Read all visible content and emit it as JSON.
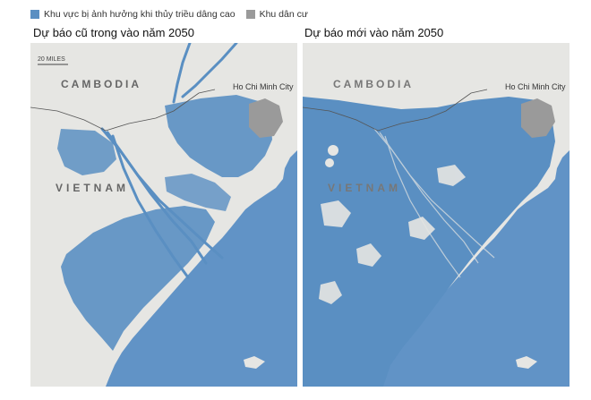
{
  "legend": {
    "items": [
      {
        "label": "Khu vực bị ảnh hưởng khi thủy triều dâng cao",
        "color": "#5a8fc2"
      },
      {
        "label": "Khu dân cư",
        "color": "#9a9a9a"
      }
    ]
  },
  "colors": {
    "sea": "#6193c6",
    "land": "#e6e6e3",
    "flood": "#5a8fc2",
    "urban": "#9a9a9a"
  },
  "panels": [
    {
      "title": "Dự báo cũ trong vào năm 2050",
      "scale": "20 MILES",
      "country_1": "CAMBODIA",
      "country_2": "VIETNAM",
      "city": "Ho Chi Minh City"
    },
    {
      "title": "Dự báo mới vào năm 2050",
      "country_1": "CAMBODIA",
      "country_2": "VIETNAM",
      "city": "Ho Chi Minh City"
    }
  ]
}
